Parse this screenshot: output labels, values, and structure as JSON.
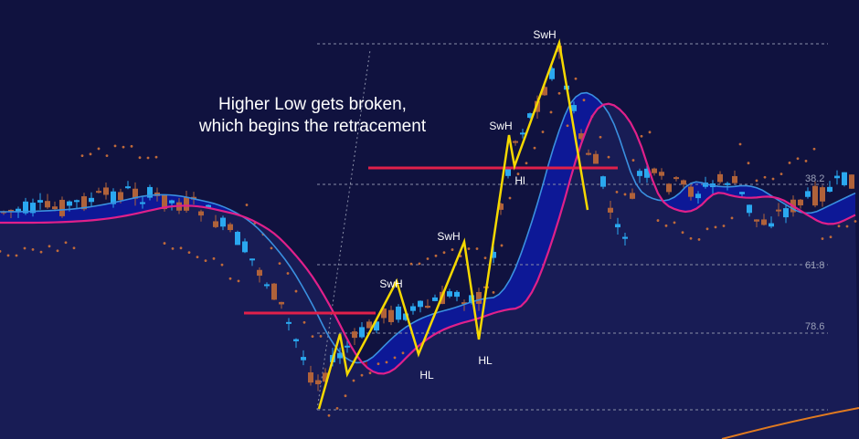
{
  "annotation": [
    "Higher Low gets broken,",
    "which begins the retracement"
  ],
  "swing_labels": [
    "SwH",
    "SwH",
    "Hl",
    "SwH",
    "SwH",
    "HL",
    "HL"
  ],
  "fib_labels": [
    "38.2",
    "61.8",
    "78.6"
  ]
}
